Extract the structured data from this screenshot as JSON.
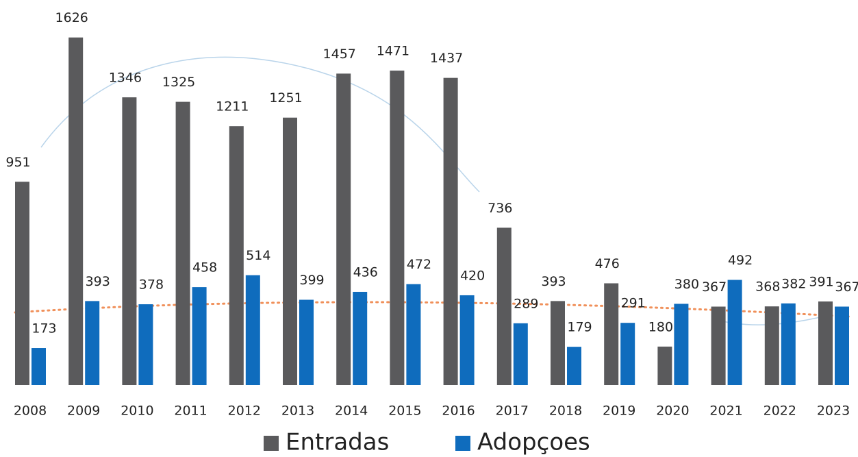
{
  "chart_data": {
    "type": "bar",
    "categories": [
      "2008",
      "2009",
      "2010",
      "2011",
      "2012",
      "2013",
      "2014",
      "2015",
      "2016",
      "2017",
      "2018",
      "2019",
      "2020",
      "2021",
      "2022",
      "2023"
    ],
    "series": [
      {
        "name": "Entradas",
        "color": "#5a5a5c",
        "values": [
          951,
          1626,
          1346,
          1325,
          1211,
          1251,
          1457,
          1471,
          1437,
          736,
          393,
          476,
          180,
          367,
          368,
          391
        ]
      },
      {
        "name": "Adopçoes",
        "color": "#0f6cbd",
        "values": [
          173,
          393,
          378,
          458,
          514,
          399,
          436,
          472,
          420,
          289,
          179,
          291,
          380,
          492,
          382,
          367
        ]
      }
    ],
    "legend": "bottom"
  }
}
